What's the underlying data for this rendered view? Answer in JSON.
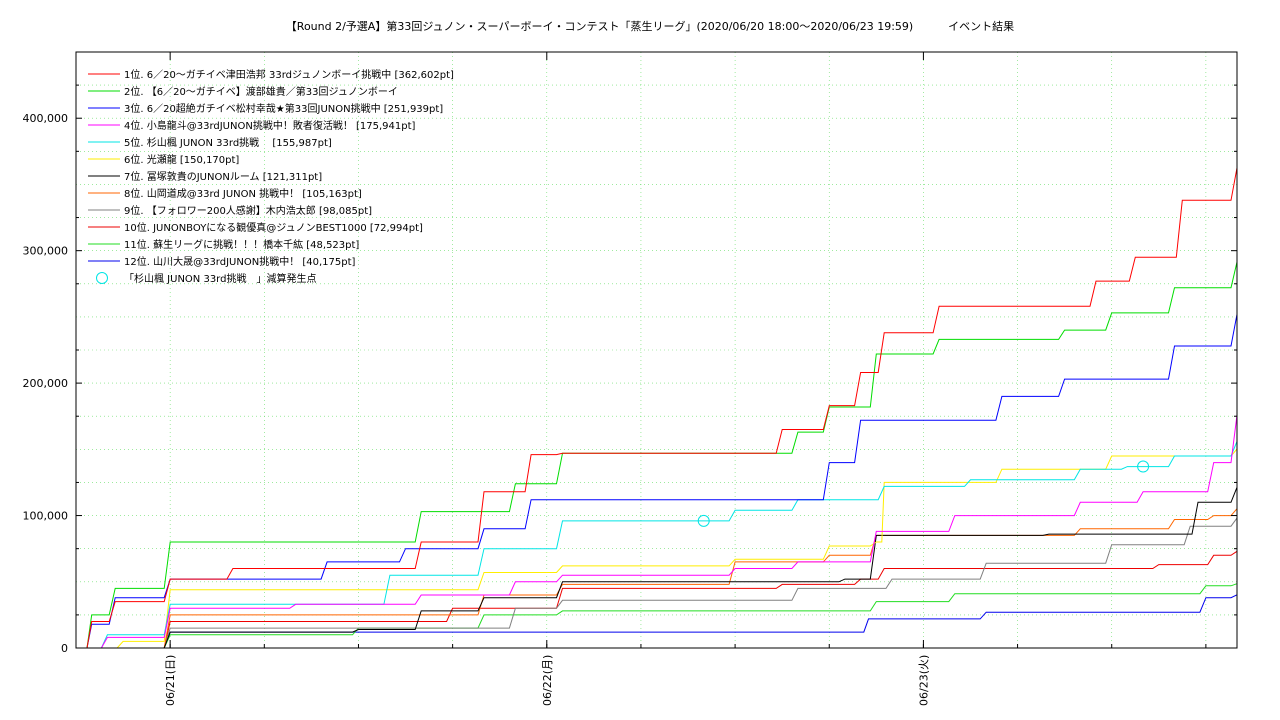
{
  "title": "【Round 2/予選A】第33回ジュノン・スーパーボーイ・コンテスト「蒸生リーグ」(2020/06/20 18:00〜2020/06/23 19:59)          イベント結果",
  "chart_data": {
    "type": "line",
    "title": "【Round 2/予選A】第33回ジュノン・スーパーボーイ・コンテスト「蒸生リーグ」(2020/06/20 18:00〜2020/06/23 19:59)          イベント結果",
    "xlabel": "",
    "ylabel": "",
    "x_unit": "date",
    "xlim": [
      "2020/06/20 18:00",
      "2020/06/23 19:59"
    ],
    "ylim": [
      0,
      450000
    ],
    "grid": true,
    "legend_position": "top-left",
    "y_ticks": [
      0,
      100000,
      200000,
      300000,
      400000
    ],
    "y_tick_labels": [
      "0",
      "100,000",
      "200,000",
      "300,000",
      "400,000"
    ],
    "x_ticks": [
      "2020/06/21 00:00",
      "2020/06/22 00:00",
      "2020/06/23 00:00"
    ],
    "x_tick_labels": [
      "06/21(日)",
      "06/22(月)",
      "06/23(火)"
    ],
    "series": [
      {
        "name": "1位. 6／20〜ガチイベ津田浩邦 33rdジュノンボーイ挑戦中 [362,602pt]",
        "color": "#ff0000",
        "x": [
          "2020/06/20 18:00",
          "2020/06/20 19:00",
          "2020/06/20 20:30",
          "2020/06/21 00:00",
          "2020/06/21 04:00",
          "2020/06/21 12:00",
          "2020/06/21 16:00",
          "2020/06/21 20:00",
          "2020/06/21 23:00",
          "2020/06/22 01:00",
          "2020/06/22 13:00",
          "2020/06/22 15:00",
          "2020/06/22 18:00",
          "2020/06/22 20:00",
          "2020/06/22 21:30",
          "2020/06/23 01:00",
          "2020/06/23 09:00",
          "2020/06/23 11:00",
          "2020/06/23 13:30",
          "2020/06/23 16:30",
          "2020/06/23 19:59"
        ],
        "y": [
          0,
          20000,
          35000,
          52000,
          60000,
          60000,
          80000,
          118000,
          146000,
          147000,
          147000,
          165000,
          183000,
          208000,
          238000,
          258000,
          258000,
          277000,
          295000,
          338000,
          362602
        ]
      },
      {
        "name": "2位. 【6／20〜ガチイベ】渡部雄貴／第33回ジュノンボーイ",
        "color": "#00dd00",
        "x": [
          "2020/06/20 18:00",
          "2020/06/20 19:00",
          "2020/06/20 20:30",
          "2020/06/21 00:00",
          "2020/06/21 10:00",
          "2020/06/21 16:00",
          "2020/06/21 22:00",
          "2020/06/22 01:00",
          "2020/06/22 13:00",
          "2020/06/22 16:00",
          "2020/06/22 18:00",
          "2020/06/22 21:00",
          "2020/06/23 01:00",
          "2020/06/23 09:00",
          "2020/06/23 12:00",
          "2020/06/23 16:00",
          "2020/06/23 19:59"
        ],
        "y": [
          0,
          25000,
          45000,
          80000,
          80000,
          103000,
          124000,
          147000,
          147000,
          163000,
          182000,
          222000,
          233000,
          240000,
          253000,
          272000,
          291409
        ]
      },
      {
        "name": "3位. 6／20超絶ガチイベ松村幸哉★第33回JUNON挑戦中 [251,939pt]",
        "color": "#0000ff",
        "x": [
          "2020/06/20 18:00",
          "2020/06/20 19:00",
          "2020/06/20 20:30",
          "2020/06/21 00:00",
          "2020/06/21 04:00",
          "2020/06/21 10:00",
          "2020/06/21 15:00",
          "2020/06/21 20:00",
          "2020/06/21 23:00",
          "2020/06/22 01:00",
          "2020/06/22 12:00",
          "2020/06/22 18:00",
          "2020/06/22 20:00",
          "2020/06/23 05:00",
          "2020/06/23 09:00",
          "2020/06/23 14:00",
          "2020/06/23 16:00",
          "2020/06/23 19:59"
        ],
        "y": [
          0,
          18000,
          38000,
          52000,
          52000,
          65000,
          75000,
          90000,
          112000,
          112000,
          112000,
          140000,
          172000,
          190000,
          203000,
          203000,
          228000,
          251939
        ]
      },
      {
        "name": "4位. 小島龍斗@33rdJUNON挑戦中！敗者復活戦！ [175,941pt]",
        "color": "#ff00ff",
        "x": [
          "2020/06/20 18:00",
          "2020/06/20 20:00",
          "2020/06/21 00:00",
          "2020/06/21 08:00",
          "2020/06/21 16:00",
          "2020/06/21 22:00",
          "2020/06/22 01:00",
          "2020/06/22 12:00",
          "2020/06/22 16:00",
          "2020/06/22 21:00",
          "2020/06/23 02:00",
          "2020/06/23 10:00",
          "2020/06/23 14:00",
          "2020/06/23 18:30",
          "2020/06/23 19:59"
        ],
        "y": [
          0,
          8000,
          30000,
          33000,
          40000,
          50000,
          55000,
          60000,
          65000,
          88000,
          100000,
          110000,
          118000,
          140000,
          175941
        ]
      },
      {
        "name": "5位. 杉山楓 JUNON 33rd挑戦　 [155,987pt]",
        "color": "#00e5e5",
        "x": [
          "2020/06/20 18:00",
          "2020/06/20 20:00",
          "2020/06/21 00:00",
          "2020/06/21 10:00",
          "2020/06/21 14:00",
          "2020/06/21 20:00",
          "2020/06/22 01:00",
          "2020/06/22 10:00",
          "2020/06/22 12:00",
          "2020/06/22 16:00",
          "2020/06/22 21:30",
          "2020/06/23 03:00",
          "2020/06/23 10:00",
          "2020/06/23 13:00",
          "2020/06/23 16:00",
          "2020/06/23 19:59"
        ],
        "y": [
          0,
          10000,
          33000,
          33000,
          55000,
          75000,
          96000,
          96000,
          104000,
          112000,
          122000,
          127000,
          135000,
          137000,
          145000,
          155987
        ]
      },
      {
        "name": "6位. 光瀬龍 [150,170pt]",
        "color": "#ffee00",
        "x": [
          "2020/06/20 18:00",
          "2020/06/20 21:00",
          "2020/06/21 00:00",
          "2020/06/21 14:00",
          "2020/06/21 20:00",
          "2020/06/22 01:00",
          "2020/06/22 12:00",
          "2020/06/22 18:00",
          "2020/06/22 21:00",
          "2020/06/22 21:30",
          "2020/06/23 05:00",
          "2020/06/23 12:00",
          "2020/06/23 19:59"
        ],
        "y": [
          0,
          5000,
          44000,
          44000,
          57000,
          62000,
          67000,
          77000,
          80000,
          125000,
          135000,
          145000,
          150170
        ]
      },
      {
        "name": "7位. 冨塚敦貴のJUNONルーム [121,311pt]",
        "color": "#000000",
        "x": [
          "2020/06/20 18:00",
          "2020/06/21 00:00",
          "2020/06/21 12:00",
          "2020/06/21 16:00",
          "2020/06/21 20:00",
          "2020/06/22 01:00",
          "2020/06/22 12:00",
          "2020/06/22 19:00",
          "2020/06/22 21:00",
          "2020/06/23 08:00",
          "2020/06/23 16:00",
          "2020/06/23 17:30",
          "2020/06/23 19:59"
        ],
        "y": [
          0,
          12000,
          14000,
          28000,
          38000,
          50000,
          50000,
          52000,
          85000,
          86000,
          86000,
          110000,
          121311
        ]
      },
      {
        "name": "8位. 山岡道成@33rd JUNON 挑戦中！ [105,163pt]",
        "color": "#ff6600",
        "x": [
          "2020/06/20 18:00",
          "2020/06/21 00:00",
          "2020/06/21 12:00",
          "2020/06/21 20:00",
          "2020/06/22 01:00",
          "2020/06/22 12:00",
          "2020/06/22 18:00",
          "2020/06/22 21:00",
          "2020/06/23 02:00",
          "2020/06/23 10:00",
          "2020/06/23 16:00",
          "2020/06/23 18:30",
          "2020/06/23 19:59"
        ],
        "y": [
          0,
          25000,
          25000,
          40000,
          48000,
          65000,
          70000,
          85000,
          85000,
          90000,
          97000,
          100000,
          105163
        ]
      },
      {
        "name": "9位. 【フォロワー200人感謝】木内浩太郎 [98,085pt]",
        "color": "#808080",
        "x": [
          "2020/06/20 18:00",
          "2020/06/21 00:00",
          "2020/06/21 14:00",
          "2020/06/21 22:00",
          "2020/06/22 01:00",
          "2020/06/22 12:00",
          "2020/06/22 16:00",
          "2020/06/22 22:00",
          "2020/06/23 04:00",
          "2020/06/23 12:00",
          "2020/06/23 17:00",
          "2020/06/23 19:59"
        ],
        "y": [
          0,
          15000,
          15000,
          30000,
          36000,
          36000,
          45000,
          52000,
          64000,
          78000,
          92000,
          98085
        ]
      },
      {
        "name": "10位. JUNONBOYになる観優真@ジュノンBEST1000 [72,994pt]",
        "color": "#ee0000",
        "x": [
          "2020/06/20 18:00",
          "2020/06/21 00:00",
          "2020/06/21 12:00",
          "2020/06/21 18:00",
          "2020/06/22 01:00",
          "2020/06/22 15:00",
          "2020/06/22 20:00",
          "2020/06/22 21:30",
          "2020/06/23 04:00",
          "2020/06/23 15:00",
          "2020/06/23 18:30",
          "2020/06/23 19:59"
        ],
        "y": [
          0,
          20000,
          20000,
          30000,
          45000,
          48000,
          52000,
          60000,
          60000,
          63000,
          70000,
          72994
        ]
      },
      {
        "name": "11位. 蘇生リーグに挑戦！！！橋本千紘 [48,523pt]",
        "color": "#22dd22",
        "x": [
          "2020/06/20 18:00",
          "2020/06/21 00:00",
          "2020/06/21 12:00",
          "2020/06/21 20:00",
          "2020/06/22 01:00",
          "2020/06/22 12:00",
          "2020/06/22 18:00",
          "2020/06/22 21:00",
          "2020/06/23 02:00",
          "2020/06/23 16:00",
          "2020/06/23 18:00",
          "2020/06/23 19:59"
        ],
        "y": [
          0,
          10000,
          15000,
          25000,
          28000,
          28000,
          28000,
          35000,
          41000,
          41000,
          47000,
          48523
        ]
      },
      {
        "name": "12位. 山川大晟@33rdJUNON挑戦中！ [40,175pt]",
        "color": "#0000ee",
        "x": [
          "2020/06/20 18:00",
          "2020/06/21 00:00",
          "2020/06/21 16:00",
          "2020/06/22 01:00",
          "2020/06/22 12:00",
          "2020/06/22 19:30",
          "2020/06/22 20:30",
          "2020/06/23 04:00",
          "2020/06/23 15:00",
          "2020/06/23 18:00",
          "2020/06/23 19:59"
        ],
        "y": [
          0,
          12000,
          12000,
          12000,
          12000,
          12000,
          22000,
          27000,
          27000,
          38000,
          40175
        ]
      }
    ],
    "markers": {
      "label": "「杉山楓 JUNON 33rd挑戦　」減算発生点",
      "color": "#00e5e5",
      "points": [
        {
          "x": "2020/06/22 10:00",
          "y": 96000
        },
        {
          "x": "2020/06/23 14:00",
          "y": 137000
        }
      ]
    }
  }
}
